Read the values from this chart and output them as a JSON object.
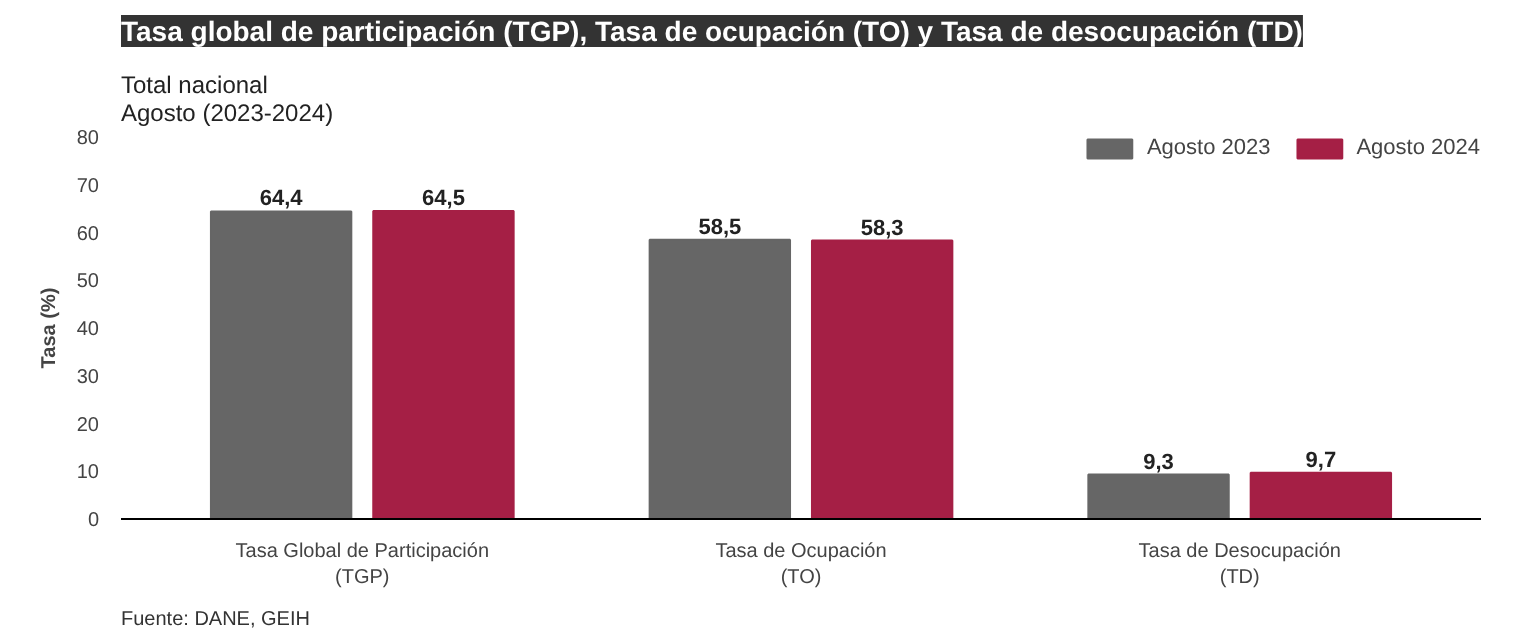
{
  "chart_data": {
    "type": "bar",
    "title": "Tasa global de participación (TGP), Tasa de ocupación (TO) y Tasa de desocupación (TD)",
    "subtitle": "Total nacional\nAgosto (2023-2024)",
    "ylabel": "Tasa (%)",
    "categories": [
      "Tasa Global de Participación\n(TGP)",
      "Tasa de Ocupación\n(TO)",
      "Tasa de Desocupación\n(TD)"
    ],
    "series": [
      {
        "name": "Agosto 2023",
        "color": "#666666",
        "values": [
          64.4,
          58.5,
          9.3
        ],
        "value_labels": [
          "64,4",
          "58,5",
          "9,3"
        ]
      },
      {
        "name": "Agosto 2024",
        "color": "#a51f45",
        "values": [
          64.5,
          58.3,
          9.7
        ],
        "value_labels": [
          "64,5",
          "58,3",
          "9,7"
        ]
      }
    ],
    "ylim": [
      0,
      80
    ],
    "yticks": [
      0,
      10,
      20,
      30,
      40,
      50,
      60,
      70,
      80
    ],
    "grid": false,
    "legend": "top right",
    "annotations": [
      "Fuente: DANE, GEIH"
    ]
  }
}
